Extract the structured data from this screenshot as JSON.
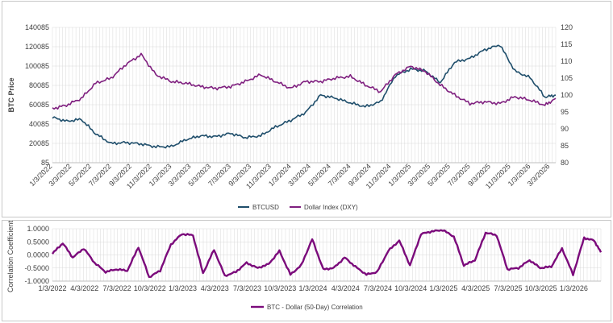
{
  "colors": {
    "btc": "#1f4e6b",
    "dxy": "#7f1f7f",
    "corr": "#7b0a7b",
    "grid": "#d9d9d9",
    "axis": "#bfbfbf"
  },
  "chart_data": [
    {
      "type": "line",
      "ylabel": "BTC Price",
      "y_ticks": [
        "140085",
        "120085",
        "100085",
        "80085",
        "60085",
        "40085",
        "20085",
        "85"
      ],
      "y2_ticks": [
        "120",
        "115",
        "110",
        "105",
        "100",
        "95",
        "90",
        "85",
        "80"
      ],
      "ylim": [
        85,
        140085
      ],
      "y2lim": [
        80,
        120
      ],
      "x_ticks": [
        "1/3/2022",
        "3/3/2022",
        "5/3/2022",
        "7/3/2022",
        "9/3/2022",
        "11/3/2022",
        "1/3/2023",
        "3/3/2023",
        "5/3/2023",
        "7/3/2023",
        "9/3/2023",
        "11/3/2023",
        "1/3/2024",
        "3/3/2024",
        "5/3/2024",
        "7/3/2024",
        "9/3/2024",
        "11/3/2024",
        "1/3/2025",
        "3/3/2025",
        "5/3/2025",
        "7/3/2025",
        "9/3/2025",
        "11/3/2025",
        "1/3/2026",
        "3/3/2026"
      ],
      "grid": true,
      "legend_position": "bottom",
      "x": [
        "2022-01-03",
        "2022-02-15",
        "2022-04-01",
        "2022-05-15",
        "2022-07-01",
        "2022-08-15",
        "2022-10-01",
        "2022-11-15",
        "2023-01-01",
        "2023-02-15",
        "2023-04-01",
        "2023-05-15",
        "2023-07-01",
        "2023-08-15",
        "2023-10-01",
        "2023-11-15",
        "2024-01-01",
        "2024-02-15",
        "2024-04-01",
        "2024-05-15",
        "2024-07-01",
        "2024-08-15",
        "2024-10-01",
        "2024-11-15",
        "2025-01-01",
        "2025-02-15",
        "2025-04-01",
        "2025-05-15",
        "2025-07-01",
        "2025-08-15",
        "2025-10-01",
        "2025-11-15",
        "2026-01-01",
        "2026-02-15",
        "2026-03-20"
      ],
      "series": [
        {
          "name": "BTCUSD",
          "axis": "left",
          "values": [
            47000,
            43000,
            45000,
            30000,
            20000,
            21000,
            19500,
            16500,
            16800,
            24000,
            28000,
            27000,
            30500,
            26000,
            28000,
            37000,
            44000,
            52000,
            70000,
            67000,
            62000,
            58000,
            63000,
            90000,
            97000,
            95000,
            83000,
            104000,
            108000,
            117000,
            122000,
            95000,
            88000,
            68000,
            70000
          ]
        },
        {
          "name": "Dollar Index (DXY)",
          "axis": "right",
          "values": [
            96.0,
            97.0,
            99.0,
            103.5,
            105.0,
            109.0,
            112.0,
            106.0,
            104.0,
            103.5,
            102.5,
            102.0,
            102.5,
            104.0,
            106.0,
            104.0,
            102.0,
            104.0,
            104.0,
            105.0,
            105.5,
            103.0,
            101.0,
            106.0,
            108.5,
            107.0,
            103.0,
            100.0,
            97.5,
            98.0,
            97.5,
            99.5,
            98.5,
            97.0,
            99.0
          ]
        }
      ]
    },
    {
      "type": "line",
      "ylabel": "Correlation Coefficient",
      "y_ticks": [
        "1.0000",
        "0.5000",
        "0.0000",
        "-0.5000",
        "-1.0000"
      ],
      "ylim": [
        -1,
        1
      ],
      "x_ticks": [
        "1/3/2022",
        "4/3/2022",
        "7/3/2022",
        "10/3/2022",
        "1/3/2023",
        "4/3/2023",
        "7/3/2023",
        "10/3/2023",
        "1/3/2024",
        "4/3/2024",
        "7/3/2024",
        "10/3/2024",
        "1/3/2025",
        "4/3/2025",
        "7/3/2025",
        "10/3/2025",
        "1/3/2026"
      ],
      "grid": true,
      "legend_position": "bottom",
      "x": [
        "2022-01-03",
        "2022-02-01",
        "2022-03-01",
        "2022-04-01",
        "2022-05-01",
        "2022-06-01",
        "2022-07-01",
        "2022-08-01",
        "2022-09-01",
        "2022-10-01",
        "2022-11-01",
        "2022-12-01",
        "2023-01-01",
        "2023-02-01",
        "2023-03-01",
        "2023-04-01",
        "2023-05-01",
        "2023-06-01",
        "2023-07-01",
        "2023-08-01",
        "2023-09-01",
        "2023-10-01",
        "2023-11-01",
        "2023-12-01",
        "2024-01-01",
        "2024-02-01",
        "2024-03-01",
        "2024-04-01",
        "2024-05-01",
        "2024-06-01",
        "2024-07-01",
        "2024-08-01",
        "2024-09-01",
        "2024-10-01",
        "2024-11-01",
        "2024-12-01",
        "2025-01-01",
        "2025-02-01",
        "2025-03-01",
        "2025-04-01",
        "2025-05-01",
        "2025-06-01",
        "2025-07-01",
        "2025-08-01",
        "2025-09-01",
        "2025-10-01",
        "2025-11-01",
        "2025-12-01",
        "2026-01-01",
        "2026-02-01",
        "2026-03-01",
        "2026-03-20"
      ],
      "series": [
        {
          "name": "BTC - Dollar (50-Day) Correlation",
          "values": [
            0.05,
            0.45,
            -0.1,
            0.25,
            -0.3,
            -0.65,
            -0.55,
            -0.6,
            0.3,
            -0.85,
            -0.6,
            0.4,
            0.8,
            0.75,
            -0.7,
            0.2,
            -0.8,
            -0.65,
            -0.3,
            -0.5,
            -0.35,
            0.15,
            -0.75,
            -0.4,
            0.6,
            -0.55,
            -0.5,
            -0.1,
            -0.45,
            -0.75,
            -0.65,
            0.15,
            0.55,
            -0.4,
            0.8,
            0.9,
            0.95,
            0.7,
            -0.4,
            -0.2,
            0.85,
            0.75,
            -0.55,
            -0.5,
            -0.2,
            -0.5,
            -0.45,
            0.25,
            -0.75,
            0.65,
            0.55,
            0.1
          ]
        }
      ]
    }
  ]
}
